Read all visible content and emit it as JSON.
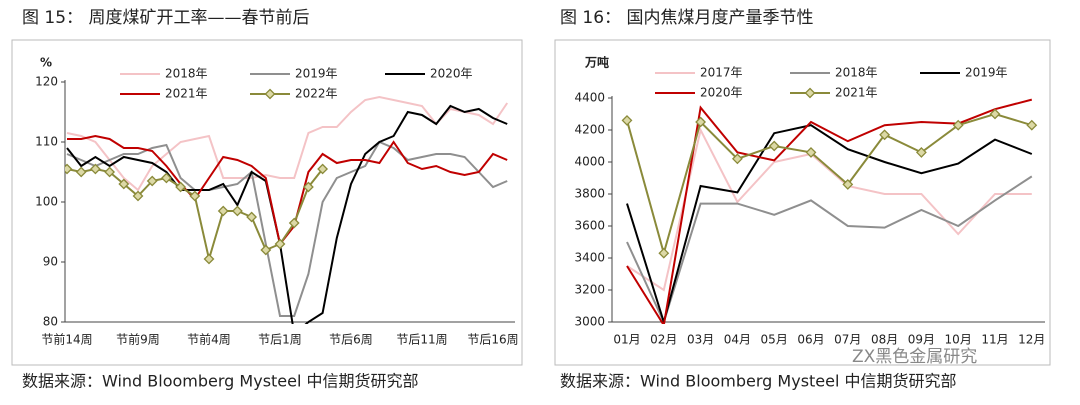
{
  "chart_data": [
    {
      "type": "line",
      "title": "图 15：  周度煤矿开工率——春节前后",
      "y_label": "%",
      "source": "数据来源：Wind Bloomberg Mysteel 中信期货研究部",
      "categories": [
        "节前14周",
        null,
        null,
        null,
        null,
        "节前9周",
        null,
        null,
        null,
        null,
        "节前4周",
        null,
        null,
        null,
        null,
        "节后1周",
        null,
        null,
        null,
        null,
        "节后6周",
        null,
        null,
        null,
        null,
        "节后11周",
        null,
        null,
        null,
        null,
        "节后16周",
        null
      ],
      "ylim": [
        80,
        120
      ],
      "yticks": [
        80,
        90,
        100,
        110,
        120
      ],
      "series": [
        {
          "name": "2018年",
          "color": "#f4c3c6",
          "values": [
            111.5,
            111,
            110,
            107,
            104,
            102,
            106,
            108,
            110,
            110.5,
            111,
            104,
            104,
            104,
            104.5,
            104,
            104,
            111.5,
            112.5,
            112.5,
            115,
            117,
            117.5,
            117,
            116.5,
            116,
            113,
            115.5,
            115,
            114.5,
            113,
            116.5
          ]
        },
        {
          "name": "2019年",
          "color": "#8f8f8f",
          "values": [
            108,
            107,
            106,
            107,
            108,
            108,
            109,
            109.5,
            104,
            102,
            102,
            102.5,
            103,
            105,
            93,
            81,
            81,
            88,
            100,
            104,
            105,
            106,
            110,
            109,
            107,
            107.5,
            108,
            108,
            107.5,
            105,
            102.5,
            103.5
          ]
        },
        {
          "name": "2020年",
          "color": "#000000",
          "values": [
            109,
            106,
            107.5,
            106,
            107.5,
            107,
            106.5,
            105,
            102,
            102,
            102,
            103,
            99.5,
            105,
            103.5,
            93,
            78,
            80,
            81.5,
            94,
            103,
            108,
            110,
            111,
            115,
            114.5,
            113,
            116,
            115,
            115.5,
            114,
            113
          ]
        },
        {
          "name": "2021年",
          "color": "#c00000",
          "values": [
            110.5,
            110.5,
            111,
            110.5,
            109,
            109,
            108.5,
            106,
            103,
            100.5,
            104,
            107.5,
            107,
            106,
            104,
            93,
            96,
            105,
            108,
            106.5,
            107,
            107,
            106.5,
            110,
            106.5,
            105.5,
            106,
            105,
            104.5,
            105,
            108,
            107
          ]
        },
        {
          "name": "2022年",
          "color": "#8a8a3a",
          "marker": "diamond",
          "values": [
            105.5,
            105,
            105.5,
            105,
            103,
            101,
            103.5,
            104,
            102.5,
            101,
            90.5,
            98.5,
            98.5,
            97.5,
            92,
            93,
            96.5,
            102.5,
            105.5,
            null,
            null,
            null,
            null,
            null,
            null,
            null,
            null,
            null,
            null,
            null,
            null,
            null
          ]
        }
      ]
    },
    {
      "type": "line",
      "title": "图 16：  国内焦煤月度产量季节性",
      "y_label": "万吨",
      "source": "数据来源：Wind Bloomberg Mysteel 中信期货研究部",
      "categories": [
        "01月",
        "02月",
        "03月",
        "04月",
        "05月",
        "06月",
        "07月",
        "08月",
        "09月",
        "10月",
        "11月",
        "12月"
      ],
      "ylim": [
        3000,
        4400
      ],
      "yticks": [
        3000,
        3200,
        3400,
        3600,
        3800,
        4000,
        4200,
        4400
      ],
      "series": [
        {
          "name": "2017年",
          "color": "#f4c3c6",
          "values": [
            3350,
            3200,
            4200,
            3750,
            4000,
            4050,
            3850,
            3800,
            3800,
            3550,
            3800,
            3800
          ]
        },
        {
          "name": "2018年",
          "color": "#8f8f8f",
          "values": [
            3500,
            3000,
            3740,
            3740,
            3670,
            3760,
            3600,
            3590,
            3700,
            3600,
            3760,
            3910
          ]
        },
        {
          "name": "2019年",
          "color": "#000000",
          "values": [
            3740,
            3000,
            3850,
            3810,
            4180,
            4230,
            4080,
            4000,
            3930,
            3990,
            4140,
            4050
          ]
        },
        {
          "name": "2020年",
          "color": "#c00000",
          "values": [
            3350,
            2980,
            4340,
            4060,
            4010,
            4250,
            4130,
            4230,
            4250,
            4240,
            4330,
            4390
          ]
        },
        {
          "name": "2021年",
          "color": "#8a8a3a",
          "marker": "diamond",
          "values": [
            4260,
            3430,
            4250,
            4020,
            4100,
            4060,
            3860,
            4170,
            4060,
            4230,
            4300,
            4230
          ]
        }
      ]
    }
  ],
  "watermark": "ZX黑色金属研究"
}
